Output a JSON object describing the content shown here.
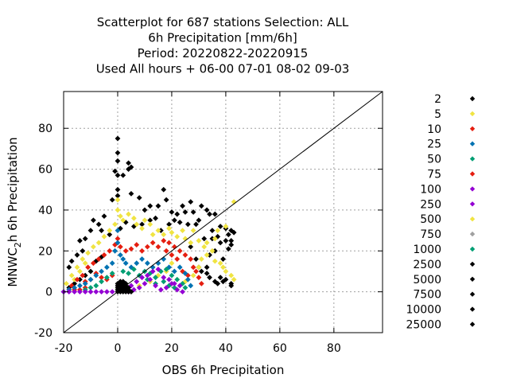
{
  "chart_data": {
    "type": "scatter",
    "title_lines": [
      "Scatterplot for  687 stations Selection: ALL",
      "6h Precipitation [mm/6h]",
      "Period: 20220822-20220915",
      "Used  All hours  + 06-00 07-01 08-02 09-03"
    ],
    "xlabel": "OBS 6h Precipitation",
    "ylabel": {
      "pre": "MNWC",
      "sub": "2",
      "post": "h 6h Precipitation"
    },
    "xlim": [
      -20,
      98
    ],
    "ylim": [
      -20,
      98
    ],
    "xticks": [
      -20,
      0,
      20,
      40,
      60,
      80
    ],
    "yticks": [
      -20,
      0,
      20,
      40,
      60,
      80
    ],
    "grid": true,
    "diagonal": [
      [
        -20,
        -20
      ],
      [
        98,
        98
      ]
    ],
    "legend_position": "right",
    "legend": [
      {
        "label": "2",
        "color": "#000000"
      },
      {
        "label": "5",
        "color": "#f0e442"
      },
      {
        "label": "10",
        "color": "#e51e10"
      },
      {
        "label": "25",
        "color": "#0072b2"
      },
      {
        "label": "50",
        "color": "#009e73"
      },
      {
        "label": "75",
        "color": "#e51e10"
      },
      {
        "label": "100",
        "color": "#9400d3"
      },
      {
        "label": "250",
        "color": "#9400d3"
      },
      {
        "label": "500",
        "color": "#f0e442"
      },
      {
        "label": "750",
        "color": "#a0a0a0"
      },
      {
        "label": "1000",
        "color": "#009e73"
      },
      {
        "label": "2500",
        "color": "#000000"
      },
      {
        "label": "5000",
        "color": "#000000"
      },
      {
        "label": "7500",
        "color": "#000000"
      },
      {
        "label": "10000",
        "color": "#000000"
      },
      {
        "label": "25000",
        "color": "#000000"
      }
    ],
    "series": [
      {
        "color": "#000000",
        "points": [
          [
            0,
            75
          ],
          [
            0,
            68
          ],
          [
            0,
            64
          ],
          [
            -1,
            59
          ],
          [
            2,
            57
          ],
          [
            4,
            60
          ],
          [
            4,
            63
          ],
          [
            5,
            61
          ],
          [
            0,
            57
          ],
          [
            0,
            50
          ],
          [
            0,
            47
          ],
          [
            -2,
            45
          ],
          [
            5,
            48
          ],
          [
            8,
            46
          ],
          [
            10,
            40
          ],
          [
            12,
            42
          ],
          [
            15,
            42
          ],
          [
            17,
            50
          ],
          [
            18,
            45
          ],
          [
            20,
            39
          ],
          [
            22,
            38
          ],
          [
            24,
            42
          ],
          [
            25,
            39
          ],
          [
            27,
            44
          ],
          [
            28,
            39
          ],
          [
            30,
            35
          ],
          [
            31,
            42
          ],
          [
            33,
            40
          ],
          [
            34,
            38
          ],
          [
            35,
            30
          ],
          [
            36,
            38
          ],
          [
            37,
            27
          ],
          [
            38,
            32
          ],
          [
            40,
            31
          ],
          [
            41,
            28
          ],
          [
            42,
            30
          ],
          [
            43,
            29
          ],
          [
            -5,
            37
          ],
          [
            -7,
            33
          ],
          [
            -10,
            30
          ],
          [
            -12,
            26
          ],
          [
            -14,
            25
          ],
          [
            -15,
            18
          ],
          [
            -17,
            15
          ],
          [
            -18,
            12
          ],
          [
            -13,
            20
          ],
          [
            -9,
            35
          ],
          [
            -6,
            30
          ],
          [
            -3,
            28
          ],
          [
            1,
            31
          ],
          [
            3,
            34
          ],
          [
            6,
            32
          ],
          [
            9,
            33
          ],
          [
            12,
            35
          ],
          [
            14,
            36
          ],
          [
            16,
            30
          ],
          [
            19,
            33
          ],
          [
            21,
            35
          ],
          [
            23,
            34
          ],
          [
            26,
            33
          ],
          [
            29,
            33
          ],
          [
            32,
            26
          ],
          [
            35,
            26
          ],
          [
            38,
            24
          ],
          [
            40,
            25
          ],
          [
            42,
            25
          ],
          [
            42,
            23
          ],
          [
            41,
            21
          ],
          [
            39,
            16
          ],
          [
            36,
            20
          ],
          [
            34,
            18
          ],
          [
            33,
            12
          ],
          [
            31,
            10
          ],
          [
            33,
            9
          ],
          [
            34,
            7
          ],
          [
            36,
            5
          ],
          [
            38,
            7
          ],
          [
            39,
            5
          ],
          [
            42,
            3
          ],
          [
            42,
            4
          ],
          [
            40,
            6
          ],
          [
            37,
            4
          ],
          [
            -18,
            2
          ],
          [
            -16,
            4
          ],
          [
            -14,
            6
          ],
          [
            -12,
            8
          ],
          [
            -10,
            10
          ],
          [
            -8,
            15
          ],
          [
            -6,
            17
          ],
          [
            27,
            22
          ],
          [
            29,
            16
          ],
          [
            30,
            12
          ]
        ]
      },
      {
        "color": "#f0e442",
        "points": [
          [
            0,
            45
          ],
          [
            0,
            40
          ],
          [
            1,
            37
          ],
          [
            2,
            35
          ],
          [
            4,
            38
          ],
          [
            6,
            36
          ],
          [
            7,
            33
          ],
          [
            9,
            31
          ],
          [
            10,
            35
          ],
          [
            12,
            33
          ],
          [
            13,
            28
          ],
          [
            15,
            30
          ],
          [
            17,
            28
          ],
          [
            19,
            31
          ],
          [
            20,
            29
          ],
          [
            22,
            27
          ],
          [
            24,
            30
          ],
          [
            25,
            26
          ],
          [
            27,
            24
          ],
          [
            28,
            30
          ],
          [
            30,
            25
          ],
          [
            32,
            22
          ],
          [
            33,
            18
          ],
          [
            35,
            20
          ],
          [
            36,
            15
          ],
          [
            38,
            14
          ],
          [
            39,
            12
          ],
          [
            40,
            10
          ],
          [
            42,
            8
          ],
          [
            43,
            6
          ],
          [
            -1,
            33
          ],
          [
            -3,
            30
          ],
          [
            -5,
            27
          ],
          [
            -7,
            24
          ],
          [
            -9,
            22
          ],
          [
            -11,
            19
          ],
          [
            -13,
            16
          ],
          [
            -15,
            12
          ],
          [
            -17,
            8
          ],
          [
            -19,
            4
          ],
          [
            -14,
            10
          ],
          [
            -16,
            6
          ],
          [
            -12,
            14
          ],
          [
            22,
            6
          ],
          [
            25,
            5
          ],
          [
            28,
            8
          ],
          [
            30,
            12
          ],
          [
            31,
            16
          ],
          [
            33,
            24
          ],
          [
            36,
            26
          ],
          [
            37,
            30
          ],
          [
            43,
            44
          ],
          [
            40,
            32
          ],
          [
            18,
            10
          ],
          [
            20,
            14
          ],
          [
            15,
            8
          ],
          [
            12,
            5
          ],
          [
            8,
            3
          ]
        ]
      },
      {
        "color": "#e51e10",
        "points": [
          [
            -17,
            3
          ],
          [
            -15,
            6
          ],
          [
            -13,
            8
          ],
          [
            -11,
            12
          ],
          [
            -9,
            14
          ],
          [
            -7,
            16
          ],
          [
            -5,
            18
          ],
          [
            -3,
            20
          ],
          [
            -1,
            23
          ],
          [
            0,
            26
          ],
          [
            1,
            22
          ],
          [
            3,
            20
          ],
          [
            5,
            21
          ],
          [
            7,
            23
          ],
          [
            9,
            20
          ],
          [
            11,
            22
          ],
          [
            13,
            24
          ],
          [
            15,
            22
          ],
          [
            17,
            25
          ],
          [
            19,
            24
          ],
          [
            21,
            22
          ],
          [
            23,
            20
          ],
          [
            25,
            18
          ],
          [
            27,
            16
          ],
          [
            28,
            12
          ],
          [
            29,
            10
          ],
          [
            30,
            7
          ],
          [
            31,
            4
          ],
          [
            -18,
            1
          ],
          [
            -16,
            1
          ],
          [
            -14,
            1
          ],
          [
            -12,
            2
          ],
          [
            24,
            10
          ],
          [
            26,
            8
          ],
          [
            22,
            16
          ],
          [
            20,
            18
          ],
          [
            18,
            20
          ],
          [
            -6,
            7
          ],
          [
            -4,
            6
          ],
          [
            -2,
            8
          ],
          [
            -8,
            9
          ],
          [
            -10,
            6
          ],
          [
            -12,
            5
          ]
        ]
      },
      {
        "color": "#0072b2",
        "points": [
          [
            0,
            30
          ],
          [
            0,
            24
          ],
          [
            -1,
            20
          ],
          [
            1,
            18
          ],
          [
            2,
            16
          ],
          [
            -2,
            14
          ],
          [
            -4,
            12
          ],
          [
            -6,
            10
          ],
          [
            -8,
            8
          ],
          [
            -10,
            6
          ],
          [
            -12,
            4
          ],
          [
            -14,
            3
          ],
          [
            -16,
            2
          ],
          [
            -18,
            1
          ],
          [
            -20,
            0
          ],
          [
            3,
            14
          ],
          [
            5,
            12
          ],
          [
            7,
            14
          ],
          [
            9,
            16
          ],
          [
            11,
            14
          ],
          [
            13,
            12
          ],
          [
            15,
            14
          ],
          [
            17,
            16
          ],
          [
            19,
            12
          ],
          [
            21,
            10
          ],
          [
            23,
            12
          ],
          [
            25,
            9
          ],
          [
            26,
            6
          ],
          [
            27,
            3
          ]
        ]
      },
      {
        "color": "#009e73",
        "points": [
          [
            2,
            10
          ],
          [
            4,
            9
          ],
          [
            6,
            11
          ],
          [
            8,
            8
          ],
          [
            10,
            10
          ],
          [
            12,
            9
          ],
          [
            14,
            7
          ],
          [
            16,
            10
          ],
          [
            18,
            11
          ],
          [
            20,
            8
          ],
          [
            22,
            6
          ],
          [
            24,
            4
          ],
          [
            25,
            2
          ],
          [
            -2,
            9
          ],
          [
            -4,
            7
          ],
          [
            -6,
            5
          ],
          [
            -8,
            3
          ],
          [
            -10,
            2
          ],
          [
            -12,
            1
          ],
          [
            17,
            5
          ],
          [
            19,
            3
          ],
          [
            21,
            2
          ],
          [
            14,
            4
          ],
          [
            11,
            6
          ]
        ]
      },
      {
        "color": "#9400d3",
        "points": [
          [
            -20,
            0
          ],
          [
            -18,
            0
          ],
          [
            -16,
            0
          ],
          [
            -14,
            0
          ],
          [
            -12,
            0
          ],
          [
            -10,
            0
          ],
          [
            -8,
            0
          ],
          [
            -6,
            0
          ],
          [
            -4,
            0
          ],
          [
            -2,
            0
          ],
          [
            4,
            0
          ],
          [
            6,
            1
          ],
          [
            8,
            2
          ],
          [
            10,
            4
          ],
          [
            12,
            6
          ],
          [
            14,
            3
          ],
          [
            16,
            1
          ],
          [
            18,
            2
          ],
          [
            20,
            4
          ],
          [
            22,
            1
          ],
          [
            24,
            0
          ],
          [
            11,
            8
          ],
          [
            13,
            10
          ],
          [
            15,
            11
          ],
          [
            9,
            7
          ],
          [
            7,
            5
          ],
          [
            5,
            3
          ],
          [
            17,
            7
          ],
          [
            19,
            6
          ],
          [
            21,
            4
          ],
          [
            23,
            3
          ]
        ]
      },
      {
        "color": "#000000",
        "points": [
          [
            0,
            0
          ],
          [
            1,
            0
          ],
          [
            2,
            0
          ],
          [
            3,
            0
          ],
          [
            4,
            0
          ],
          [
            5,
            0
          ],
          [
            0,
            1
          ],
          [
            1,
            1
          ],
          [
            2,
            1
          ],
          [
            3,
            1
          ],
          [
            4,
            1
          ],
          [
            0,
            2
          ],
          [
            1,
            2
          ],
          [
            2,
            2
          ],
          [
            3,
            2
          ],
          [
            4,
            2
          ],
          [
            0,
            3
          ],
          [
            1,
            3
          ],
          [
            2,
            3
          ],
          [
            3,
            3
          ],
          [
            0,
            4
          ],
          [
            1,
            4
          ],
          [
            2,
            4
          ],
          [
            3,
            4
          ],
          [
            1,
            5
          ],
          [
            2,
            5
          ]
        ]
      }
    ]
  }
}
